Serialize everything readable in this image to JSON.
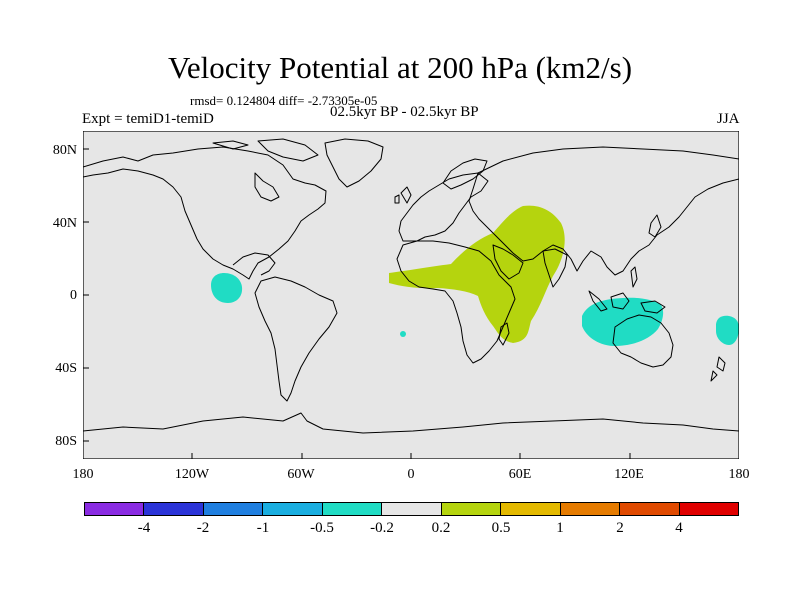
{
  "title": "Velocity Potential at 200 hPa (km2/s)",
  "stats": "rmsd= 0.124804 diff= -2.73305e-05",
  "period": "02.5kyr BP - 02.5kyr BP",
  "experiment": "Expt = temiD1-temiD",
  "season": "JJA",
  "map": {
    "lon_range": [
      -180,
      180
    ],
    "lat_range": [
      -90,
      90
    ],
    "lat_labels": [
      "80N",
      "40N",
      "0",
      "40S",
      "80S"
    ],
    "lon_labels": [
      "180",
      "120W",
      "60W",
      "0",
      "60E",
      "120E",
      "180"
    ],
    "ocean_color": "#e6e6e6",
    "coast_color": "#000000"
  },
  "colorbar": {
    "colors": [
      "#8a2be2",
      "#2b34d8",
      "#1f7fe0",
      "#1aaee0",
      "#20dcc4",
      "#e6e6e6",
      "#b5d40e",
      "#e3b900",
      "#e57b00",
      "#e04a00",
      "#e00000"
    ],
    "labels": [
      "-4",
      "-2",
      "-1",
      "-0.5",
      "-0.2",
      "0.2",
      "0.5",
      "1",
      "2",
      "4"
    ]
  },
  "anomalies": {
    "positive_color": "#b5d40e",
    "negative_color": "#20dcc4",
    "regions": [
      {
        "name": "africa-middle-east-positive",
        "sign": "positive"
      },
      {
        "name": "eastern-pacific-negative",
        "sign": "negative"
      },
      {
        "name": "indonesia-negative",
        "sign": "negative"
      },
      {
        "name": "western-pacific-negative",
        "sign": "negative"
      }
    ]
  }
}
